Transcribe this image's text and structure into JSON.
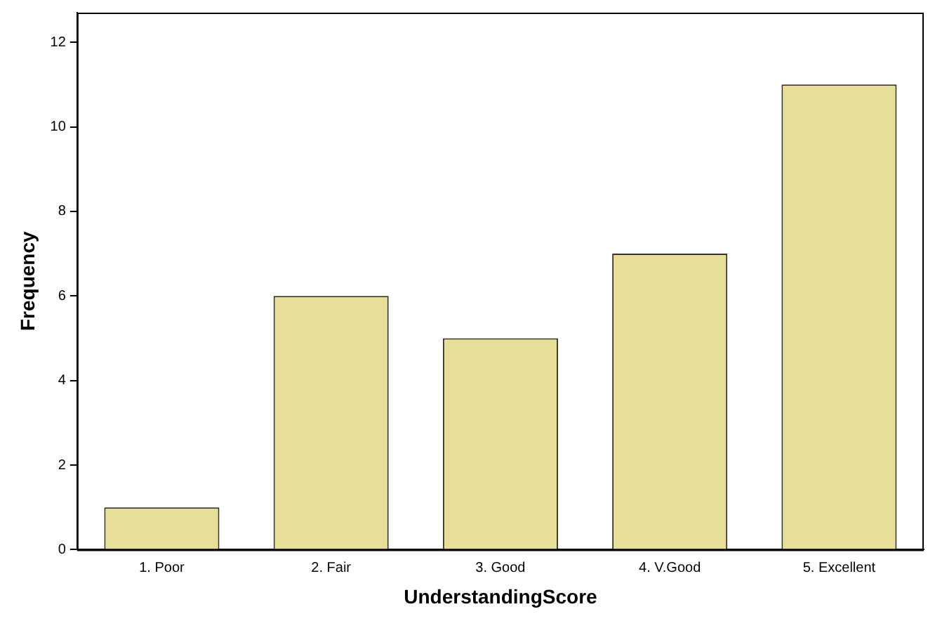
{
  "chart_data": {
    "type": "bar",
    "xlabel": "UnderstandingScore",
    "ylabel": "Frequency",
    "categories": [
      "1. Poor",
      "2. Fair",
      "3. Good",
      "4. V.Good",
      "5. Excellent"
    ],
    "values": [
      1,
      6,
      5,
      7,
      11
    ],
    "color": "#e6de99",
    "ylim": [
      0,
      12.7
    ],
    "yticks": [
      0,
      2,
      4,
      6,
      8,
      10,
      12
    ],
    "grid": false,
    "legend": false
  }
}
